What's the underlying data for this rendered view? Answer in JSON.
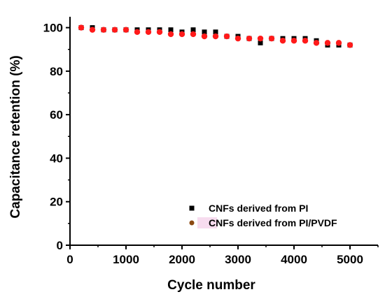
{
  "chart_data": {
    "type": "scatter",
    "xlabel": "Cycle number",
    "ylabel": "Capacitance retention (%)",
    "xlim": [
      0,
      5500
    ],
    "ylim": [
      0,
      105
    ],
    "xticks": [
      0,
      1000,
      2000,
      3000,
      4000,
      5000
    ],
    "yticks": [
      0,
      20,
      40,
      60,
      80,
      100
    ],
    "grid": false,
    "legend_position": "bottom-right",
    "series": [
      {
        "name": "CNFs derived from PI",
        "marker": "square",
        "color": "#000000",
        "x": [
          200,
          400,
          600,
          800,
          1000,
          1200,
          1400,
          1600,
          1800,
          2000,
          2200,
          2400,
          2600,
          2800,
          3000,
          3200,
          3400,
          3600,
          3800,
          4000,
          4200,
          4400,
          4600,
          4800,
          5000
        ],
        "y": [
          100,
          100,
          99,
          99,
          99,
          99,
          99,
          99,
          99,
          98,
          99,
          98,
          98,
          96,
          96,
          95,
          93,
          95,
          95,
          95,
          95,
          94,
          92,
          92,
          92
        ]
      },
      {
        "name": "CNFs derived from PI/PVDF",
        "marker": "circle",
        "color": "#ff1a1a",
        "legend_color": "#8b4a12",
        "x": [
          200,
          400,
          600,
          800,
          1000,
          1200,
          1400,
          1600,
          1800,
          2000,
          2200,
          2400,
          2600,
          2800,
          3000,
          3200,
          3400,
          3600,
          3800,
          4000,
          4200,
          4400,
          4600,
          4800,
          5000
        ],
        "y": [
          100,
          99,
          99,
          99,
          99,
          98,
          98,
          98,
          97,
          97,
          97,
          96,
          96,
          96,
          95,
          95,
          95,
          95,
          94,
          94,
          94,
          93,
          93,
          93,
          92
        ]
      }
    ]
  }
}
